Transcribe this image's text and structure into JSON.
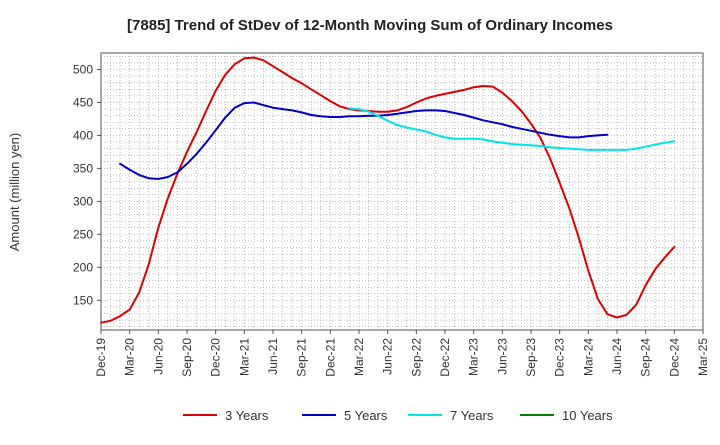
{
  "chart_data": {
    "type": "line",
    "title": "[7885]  Trend of StDev of 12-Month Moving Sum of Ordinary Incomes",
    "xlabel": "",
    "ylabel": "Amount (million yen)",
    "ylim": [
      105,
      525
    ],
    "yticks": [
      150,
      200,
      250,
      300,
      350,
      400,
      450,
      500
    ],
    "x_ticks": [
      "Dec-19",
      "Mar-20",
      "Jun-20",
      "Sep-20",
      "Dec-20",
      "Mar-21",
      "Jun-21",
      "Sep-21",
      "Dec-21",
      "Mar-22",
      "Jun-22",
      "Sep-22",
      "Dec-22",
      "Mar-23",
      "Jun-23",
      "Sep-23",
      "Dec-23",
      "Mar-24",
      "Jun-24",
      "Sep-24",
      "Dec-24",
      "Mar-25"
    ],
    "x_range": [
      0,
      63
    ],
    "grid": true,
    "legend_position": "bottom",
    "series": [
      {
        "name": "3 Years",
        "color": "#dd0000",
        "points": [
          [
            0,
            116
          ],
          [
            1,
            119
          ],
          [
            2,
            126
          ],
          [
            3,
            136
          ],
          [
            4,
            162
          ],
          [
            5,
            205
          ],
          [
            6,
            260
          ],
          [
            7,
            305
          ],
          [
            8,
            342
          ],
          [
            9,
            375
          ],
          [
            10,
            405
          ],
          [
            11,
            437
          ],
          [
            12,
            468
          ],
          [
            13,
            492
          ],
          [
            14,
            508
          ],
          [
            15,
            517
          ],
          [
            16,
            518
          ],
          [
            17,
            514
          ],
          [
            18,
            505
          ],
          [
            19,
            496
          ],
          [
            20,
            487
          ],
          [
            21,
            479
          ],
          [
            22,
            470
          ],
          [
            23,
            461
          ],
          [
            24,
            452
          ],
          [
            25,
            444
          ],
          [
            26,
            440
          ],
          [
            27,
            438
          ],
          [
            28,
            437
          ],
          [
            29,
            436
          ],
          [
            30,
            436
          ],
          [
            31,
            438
          ],
          [
            32,
            443
          ],
          [
            33,
            450
          ],
          [
            34,
            456
          ],
          [
            35,
            460
          ],
          [
            36,
            463
          ],
          [
            37,
            466
          ],
          [
            38,
            469
          ],
          [
            39,
            473
          ],
          [
            40,
            475
          ],
          [
            41,
            474
          ],
          [
            42,
            465
          ],
          [
            43,
            452
          ],
          [
            44,
            437
          ],
          [
            45,
            418
          ],
          [
            46,
            396
          ],
          [
            47,
            365
          ],
          [
            48,
            328
          ],
          [
            49,
            290
          ],
          [
            50,
            245
          ],
          [
            51,
            195
          ],
          [
            52,
            152
          ],
          [
            53,
            129
          ],
          [
            54,
            124
          ],
          [
            55,
            128
          ],
          [
            56,
            143
          ],
          [
            57,
            173
          ],
          [
            58,
            197
          ],
          [
            59,
            215
          ],
          [
            60,
            231
          ]
        ]
      },
      {
        "name": "5 Years",
        "color": "#0000cc",
        "points": [
          [
            2,
            357
          ],
          [
            3,
            348
          ],
          [
            4,
            340
          ],
          [
            5,
            335
          ],
          [
            6,
            334
          ],
          [
            7,
            337
          ],
          [
            8,
            344
          ],
          [
            9,
            357
          ],
          [
            10,
            372
          ],
          [
            11,
            389
          ],
          [
            12,
            408
          ],
          [
            13,
            427
          ],
          [
            14,
            442
          ],
          [
            15,
            449
          ],
          [
            16,
            450
          ],
          [
            17,
            446
          ],
          [
            18,
            442
          ],
          [
            19,
            440
          ],
          [
            20,
            438
          ],
          [
            21,
            435
          ],
          [
            22,
            431
          ],
          [
            23,
            429
          ],
          [
            24,
            428
          ],
          [
            25,
            428
          ],
          [
            26,
            429
          ],
          [
            27,
            429
          ],
          [
            28,
            430
          ],
          [
            29,
            430
          ],
          [
            30,
            431
          ],
          [
            31,
            433
          ],
          [
            32,
            435
          ],
          [
            33,
            437
          ],
          [
            34,
            438
          ],
          [
            35,
            438
          ],
          [
            36,
            437
          ],
          [
            37,
            434
          ],
          [
            38,
            431
          ],
          [
            39,
            427
          ],
          [
            40,
            423
          ],
          [
            41,
            420
          ],
          [
            42,
            417
          ],
          [
            43,
            413
          ],
          [
            44,
            410
          ],
          [
            45,
            407
          ],
          [
            46,
            404
          ],
          [
            47,
            401
          ],
          [
            48,
            399
          ],
          [
            49,
            397
          ],
          [
            50,
            397
          ],
          [
            51,
            399
          ],
          [
            52,
            400
          ],
          [
            53,
            401
          ]
        ]
      },
      {
        "name": "7 Years",
        "color": "#00e5e5",
        "points": [
          [
            26,
            441
          ],
          [
            27,
            440
          ],
          [
            28,
            436
          ],
          [
            29,
            430
          ],
          [
            30,
            422
          ],
          [
            31,
            416
          ],
          [
            32,
            412
          ],
          [
            33,
            409
          ],
          [
            34,
            406
          ],
          [
            35,
            401
          ],
          [
            36,
            397
          ],
          [
            37,
            395
          ],
          [
            38,
            395
          ],
          [
            39,
            395
          ],
          [
            40,
            394
          ],
          [
            41,
            391
          ],
          [
            42,
            389
          ],
          [
            43,
            387
          ],
          [
            44,
            386
          ],
          [
            45,
            385
          ],
          [
            46,
            384
          ],
          [
            47,
            382
          ],
          [
            48,
            381
          ],
          [
            49,
            380
          ],
          [
            50,
            379
          ],
          [
            51,
            378
          ],
          [
            52,
            378
          ],
          [
            53,
            378
          ],
          [
            54,
            378
          ],
          [
            55,
            378
          ],
          [
            56,
            380
          ],
          [
            57,
            383
          ],
          [
            58,
            386
          ],
          [
            59,
            389
          ],
          [
            60,
            391
          ]
        ]
      },
      {
        "name": "10 Years",
        "color": "#008000",
        "points": []
      }
    ]
  }
}
